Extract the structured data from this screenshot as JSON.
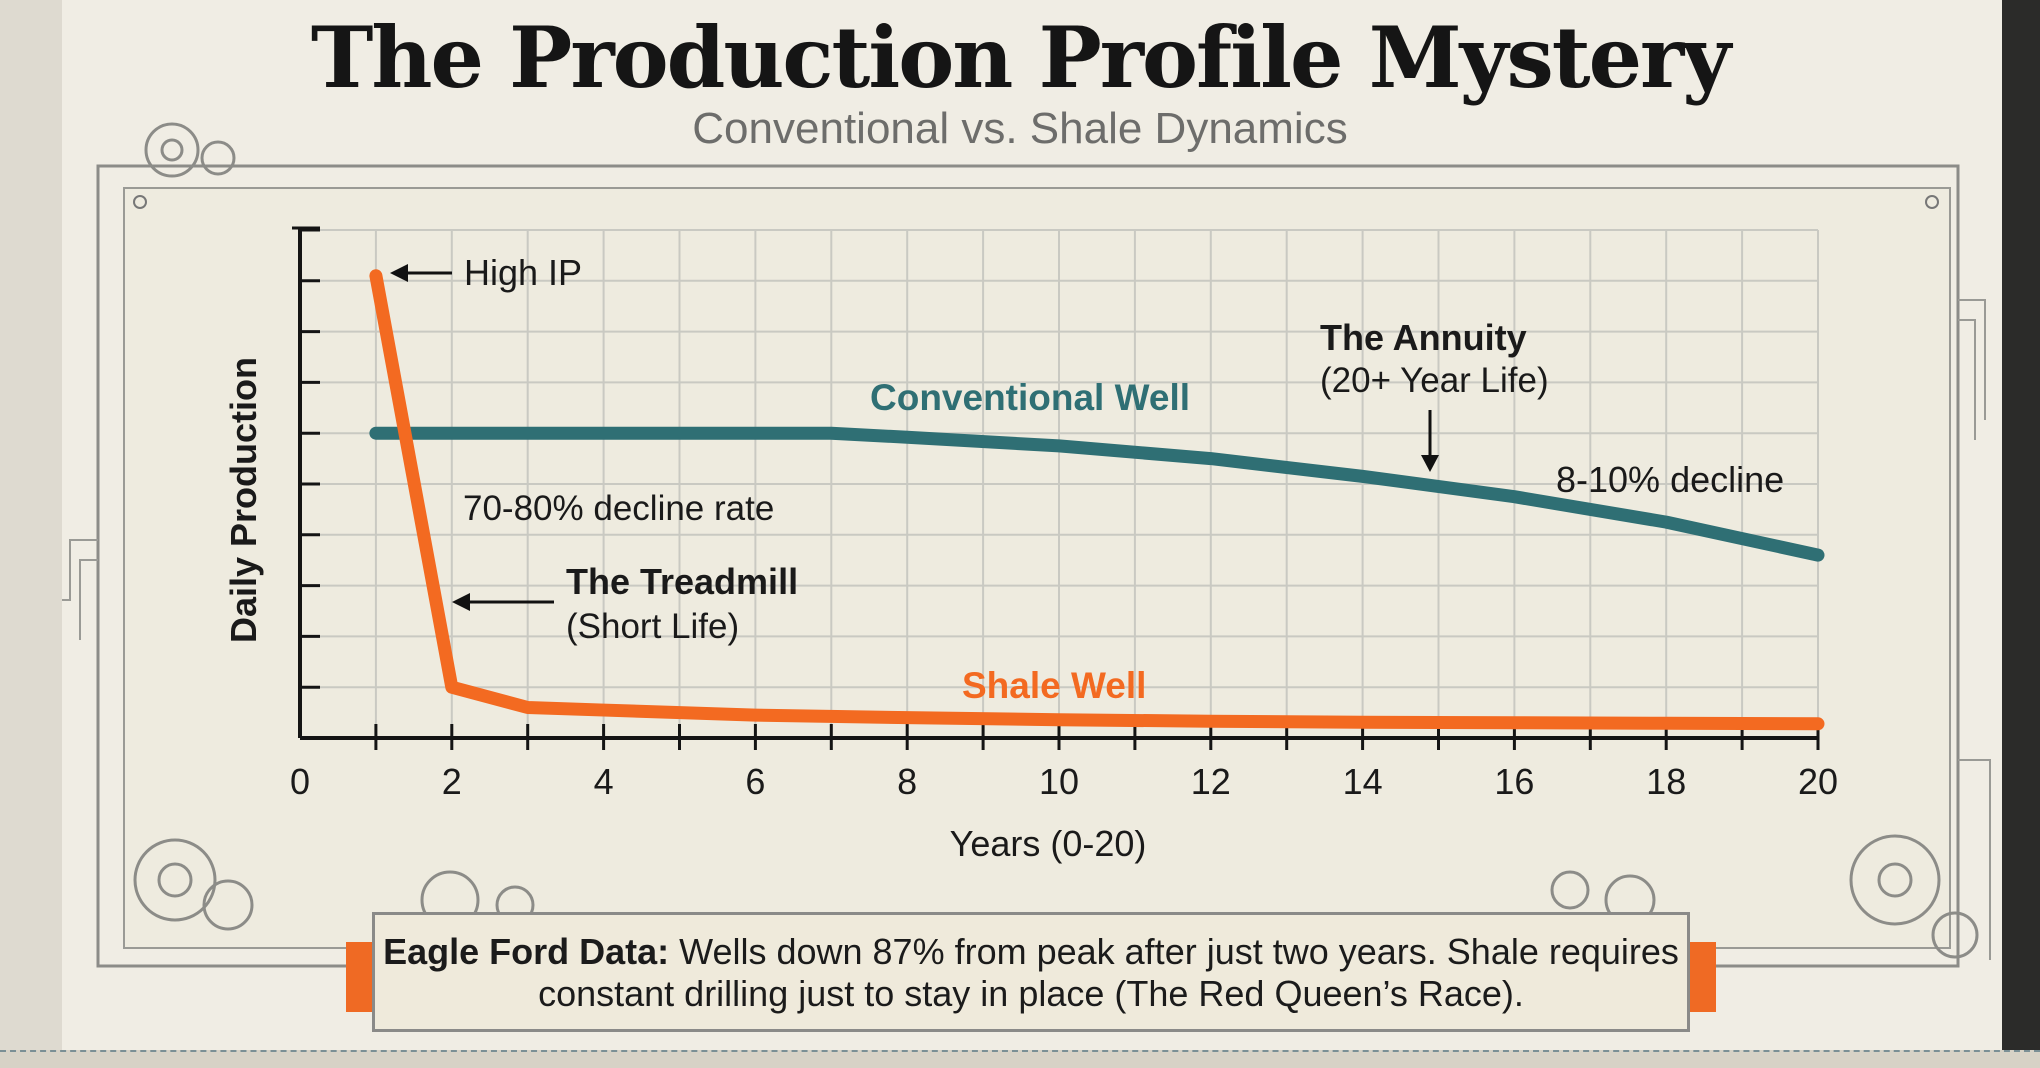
{
  "header": {
    "title": "The Production Profile Mystery",
    "subtitle": "Conventional vs. Shale Dynamics"
  },
  "colors": {
    "shale": "#f36a21",
    "conventional": "#2f6f74",
    "grid": "#c9c9c2",
    "axis": "#141414",
    "panel": "#eeebdf"
  },
  "chart_data": {
    "type": "line",
    "title": "",
    "xlabel": "Years (0-20)",
    "ylabel": "Daily Production",
    "xlim": [
      0,
      20
    ],
    "ylim": [
      0,
      100
    ],
    "x_ticks": [
      0,
      2,
      4,
      6,
      8,
      10,
      12,
      14,
      16,
      18,
      20
    ],
    "grid": true,
    "series": [
      {
        "name": "Shale Well",
        "color": "#f36a21",
        "x": [
          1,
          2,
          3,
          4,
          6,
          8,
          10,
          12,
          14,
          16,
          18,
          20
        ],
        "y": [
          91,
          10,
          6,
          5.5,
          4.5,
          4,
          3.6,
          3.3,
          3.1,
          3.0,
          2.9,
          2.8
        ]
      },
      {
        "name": "Conventional Well",
        "color": "#2f6f74",
        "x": [
          1,
          2,
          4,
          6,
          7,
          8,
          10,
          12,
          14,
          16,
          18,
          20
        ],
        "y": [
          60,
          60,
          60,
          60,
          60,
          59.2,
          57.5,
          55,
          51.5,
          47.5,
          42.5,
          36
        ]
      }
    ],
    "annotations": {
      "high_ip": "High IP",
      "shale_decline": "70-80% decline rate",
      "treadmill_title": "The Treadmill",
      "treadmill_sub": "(Short Life)",
      "annuity_title": "The Annuity",
      "annuity_sub": "(20+ Year Life)",
      "conv_decline": "8-10% decline",
      "conv_label": "Conventional Well",
      "shale_label": "Shale Well"
    }
  },
  "callout": {
    "lead": "Eagle Ford Data:",
    "text": " Wells down 87% from peak after just two years. Shale requires constant drilling just to stay in place (The Red Queen’s Race)."
  }
}
